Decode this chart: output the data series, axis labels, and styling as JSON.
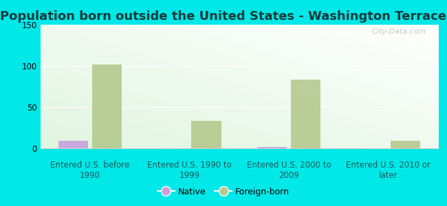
{
  "title": "Population born outside the United States - Washington Terrace",
  "categories": [
    "Entered U.S. before\n1990",
    "Entered U.S. 1990 to\n1999",
    "Entered U.S. 2000 to\n2009",
    "Entered U.S. 2010 or\nlater"
  ],
  "native_values": [
    9,
    0,
    2,
    0
  ],
  "foreign_born_values": [
    102,
    33,
    83,
    9
  ],
  "native_color": "#c9a0dc",
  "foreign_born_color": "#b5c98e",
  "background_color": "#00e8e8",
  "plot_bg_color": "#e8f5e0",
  "ylim": [
    0,
    150
  ],
  "yticks": [
    0,
    50,
    100,
    150
  ],
  "bar_width": 0.3,
  "title_fontsize": 13,
  "tick_fontsize": 8.5,
  "legend_fontsize": 9,
  "watermark_text": "City-Data.com",
  "watermark_color": "#b0bab0",
  "grid_color": "#ffffff",
  "spine_color": "#cccccc"
}
